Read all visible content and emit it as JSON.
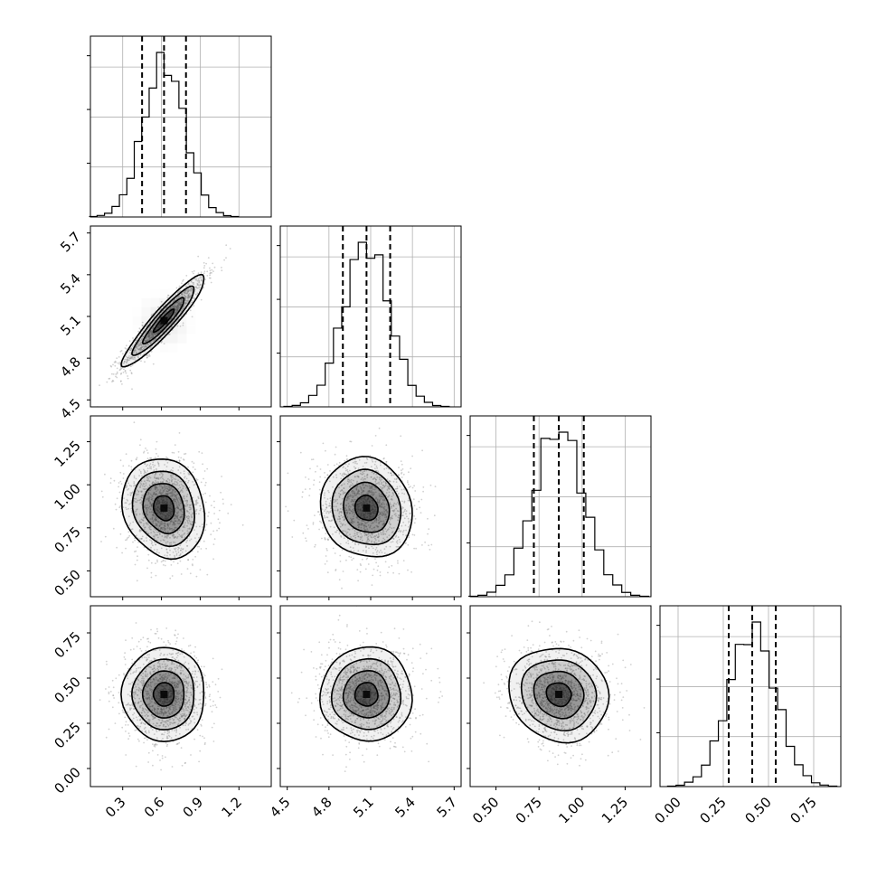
{
  "chart_data": {
    "type": "corner",
    "parameters": [
      {
        "range": [
          0.05,
          1.45
        ],
        "ticks": [
          0.3,
          0.6,
          0.9,
          1.2
        ],
        "tick_labels": [
          "0.3",
          "0.6",
          "0.9",
          "1.2"
        ],
        "mean": 0.62,
        "std": 0.16,
        "quantiles": [
          0.45,
          0.62,
          0.79
        ]
      },
      {
        "range": [
          4.45,
          5.75
        ],
        "ticks": [
          4.5,
          4.8,
          5.1,
          5.4,
          5.7
        ],
        "tick_labels": [
          "4.5",
          "4.8",
          "5.1",
          "5.4",
          "5.7"
        ],
        "mean": 5.07,
        "std": 0.165,
        "quantiles": [
          4.9,
          5.07,
          5.24
        ]
      },
      {
        "range": [
          0.35,
          1.4
        ],
        "ticks": [
          0.5,
          0.75,
          1.0,
          1.25
        ],
        "tick_labels": [
          "0.50",
          "0.75",
          "1.00",
          "1.25"
        ],
        "mean": 0.865,
        "std": 0.145,
        "quantiles": [
          0.72,
          0.865,
          1.01
        ]
      },
      {
        "range": [
          -0.1,
          0.9
        ],
        "ticks": [
          0.0,
          0.25,
          0.5,
          0.75
        ],
        "tick_labels": [
          "0.00",
          "0.25",
          "0.50",
          "0.75"
        ],
        "mean": 0.41,
        "std": 0.13,
        "quantiles": [
          0.28,
          0.41,
          0.54
        ]
      }
    ],
    "correlations": [
      {
        "pair": [
          0,
          1
        ],
        "rho": 0.93
      },
      {
        "pair": [
          0,
          2
        ],
        "rho": -0.15
      },
      {
        "pair": [
          1,
          2
        ],
        "rho": -0.1
      },
      {
        "pair": [
          0,
          3
        ],
        "rho": 0.0
      },
      {
        "pair": [
          1,
          3
        ],
        "rho": 0.0
      },
      {
        "pair": [
          2,
          3
        ],
        "rho": -0.1
      }
    ],
    "contour_levels_sigma": [
      0.5,
      1.0,
      1.5,
      2.0
    ],
    "histogram_bins": 20,
    "grid": true,
    "colors": {
      "points": "#9a9a9a",
      "contour": "#000000",
      "density": "#000000",
      "grid": "#b0b0b0"
    }
  }
}
